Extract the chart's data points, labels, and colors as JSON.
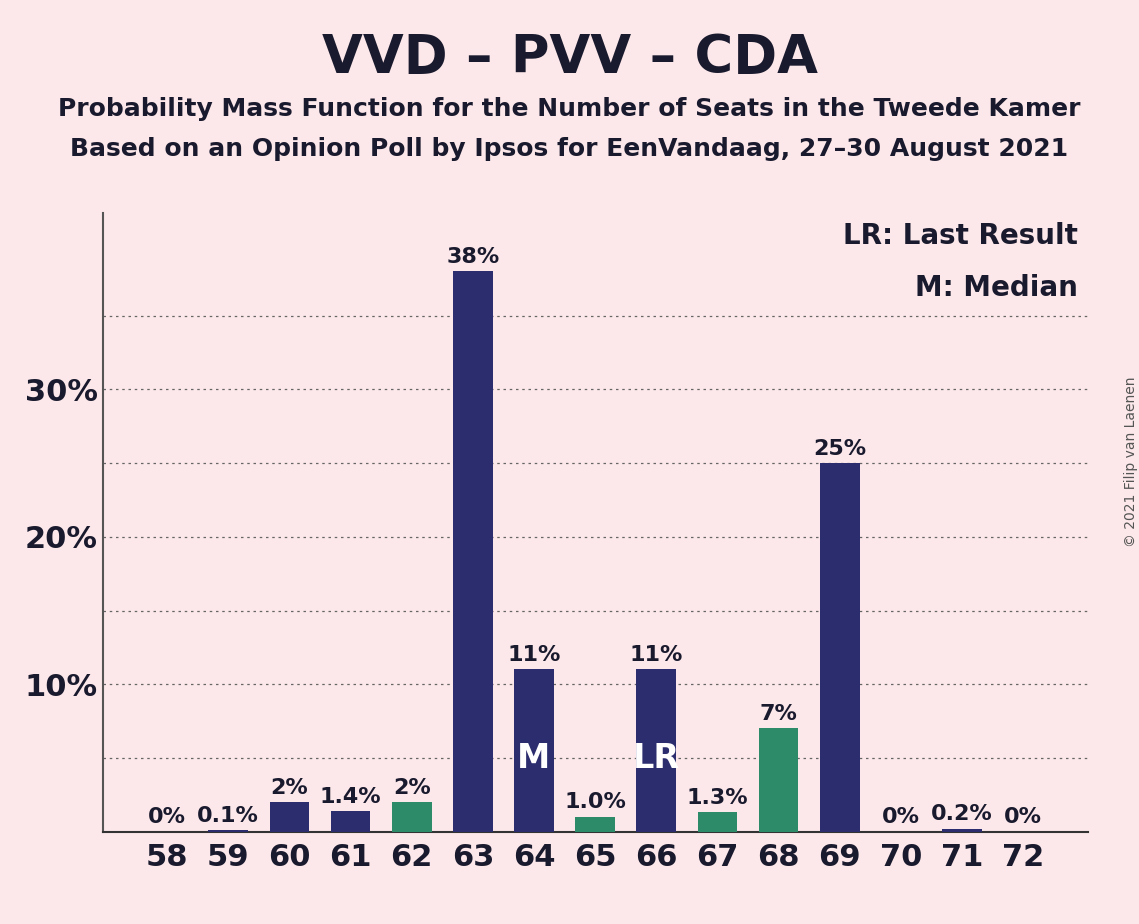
{
  "title": "VVD – PVV – CDA",
  "subtitle1": "Probability Mass Function for the Number of Seats in the Tweede Kamer",
  "subtitle2": "Based on an Opinion Poll by Ipsos for EenVandaag, 27–30 August 2021",
  "copyright": "© 2021 Filip van Laenen",
  "legend_line1": "LR: Last Result",
  "legend_line2": "M: Median",
  "background_color": "#fce8ea",
  "bar_color_navy": "#2b2d6e",
  "bar_color_teal": "#2e8b6a",
  "seats": [
    58,
    59,
    60,
    61,
    62,
    63,
    64,
    65,
    66,
    67,
    68,
    69,
    70,
    71,
    72
  ],
  "values": [
    0.0,
    0.1,
    2.0,
    1.4,
    2.0,
    38.0,
    11.0,
    1.0,
    11.0,
    1.3,
    7.0,
    25.0,
    0.0,
    0.2,
    0.0
  ],
  "labels": [
    "0%",
    "0.1%",
    "2%",
    "1.4%",
    "2%",
    "38%",
    "11%",
    "1.0%",
    "11%",
    "1.3%",
    "7%",
    "25%",
    "0%",
    "0.2%",
    "0%"
  ],
  "bar_types": [
    "navy",
    "navy",
    "navy",
    "navy",
    "teal",
    "navy",
    "navy",
    "teal",
    "navy",
    "teal",
    "teal",
    "navy",
    "navy",
    "navy",
    "navy"
  ],
  "median_seat": 64,
  "last_result_seat": 66,
  "median_label": "M",
  "last_result_label": "LR",
  "ytick_major": [
    10,
    20,
    30
  ],
  "ytick_major_labels": [
    "10%",
    "20%",
    "30%"
  ],
  "ylim": [
    0,
    42
  ],
  "grid_yticks": [
    5,
    10,
    15,
    20,
    25,
    30,
    35
  ],
  "title_fontsize": 38,
  "subtitle_fontsize": 18,
  "axis_fontsize": 22,
  "label_fontsize": 16,
  "marker_fontsize": 24,
  "legend_fontsize": 20,
  "copyright_fontsize": 10
}
